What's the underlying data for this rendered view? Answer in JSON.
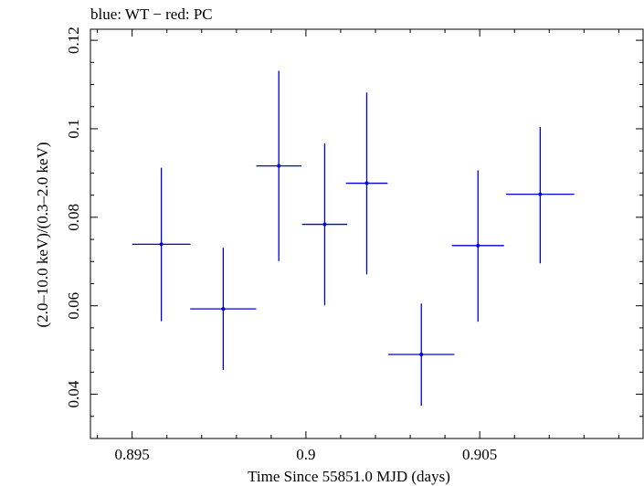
{
  "chart_data": {
    "type": "scatter",
    "title": "blue: WT − red: PC",
    "xlabel": "Time Since 55851.0 MJD (days)",
    "ylabel": "(2.0–10.0 keV)/(0.3–2.0 keV)",
    "xlim": [
      0.8938,
      0.9097
    ],
    "ylim": [
      0.03,
      0.1225
    ],
    "xticks": [
      0.895,
      0.9,
      0.905
    ],
    "xtick_labels": [
      "0.895",
      "0.9",
      "0.905"
    ],
    "yticks": [
      0.04,
      0.06,
      0.08,
      0.1,
      0.12
    ],
    "ytick_labels": [
      "0.04",
      "0.06",
      "0.08",
      "0.1",
      "0.12"
    ],
    "grid": false,
    "series": [
      {
        "color": "#0000dd",
        "points": [
          {
            "x": 0.89584,
            "xerr": 0.00084,
            "y": 0.0739,
            "ylo": 0.0565,
            "yhi": 0.0912
          },
          {
            "x": 0.89762,
            "xerr": 0.00095,
            "y": 0.0593,
            "ylo": 0.0455,
            "yhi": 0.0731
          },
          {
            "x": 0.89922,
            "xerr": 0.00065,
            "y": 0.0916,
            "ylo": 0.0701,
            "yhi": 0.1131
          },
          {
            "x": 0.90054,
            "xerr": 0.00065,
            "y": 0.0784,
            "ylo": 0.0601,
            "yhi": 0.0967
          },
          {
            "x": 0.90175,
            "xerr": 0.0006,
            "y": 0.0877,
            "ylo": 0.0671,
            "yhi": 0.1082
          },
          {
            "x": 0.90332,
            "xerr": 0.00095,
            "y": 0.049,
            "ylo": 0.0374,
            "yhi": 0.0605
          },
          {
            "x": 0.90495,
            "xerr": 0.00075,
            "y": 0.0736,
            "ylo": 0.0564,
            "yhi": 0.0906
          },
          {
            "x": 0.90674,
            "xerr": 0.00098,
            "y": 0.0852,
            "ylo": 0.0696,
            "yhi": 0.1004
          }
        ]
      }
    ]
  }
}
